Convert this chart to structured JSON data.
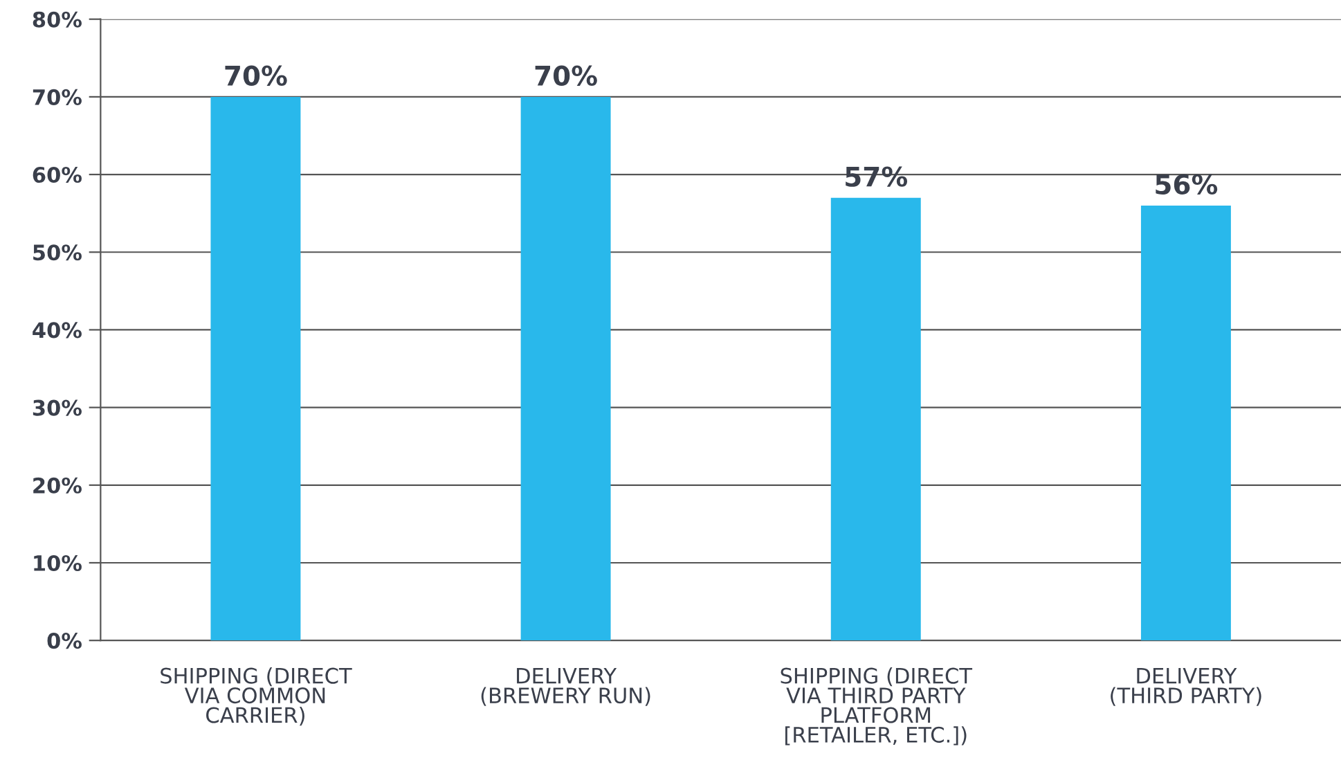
{
  "chart_data": {
    "type": "bar",
    "categories": [
      "SHIPPING (DIRECT\nVIA COMMON\nCARRIER)",
      "DELIVERY\n(BREWERY RUN)",
      "SHIPPING (DIRECT\nVIA THIRD PARTY\nPLATFORM\n[RETAILER, ETC.])",
      "DELIVERY\n(THIRD PARTY)"
    ],
    "values": [
      70,
      70,
      57,
      56
    ],
    "value_labels": [
      "70%",
      "70%",
      "57%",
      "56%"
    ],
    "color": "#29b8eb",
    "ylim": [
      0,
      80
    ],
    "yticks": [
      {
        "value": 0,
        "label": "0%"
      },
      {
        "value": 10,
        "label": "10%"
      },
      {
        "value": 20,
        "label": "20%"
      },
      {
        "value": 30,
        "label": "30%"
      },
      {
        "value": 40,
        "label": "40%"
      },
      {
        "value": 50,
        "label": "50%"
      },
      {
        "value": 60,
        "label": "60%"
      },
      {
        "value": 70,
        "label": "70%"
      },
      {
        "value": 80,
        "label": "80%"
      }
    ],
    "grid": "y"
  }
}
